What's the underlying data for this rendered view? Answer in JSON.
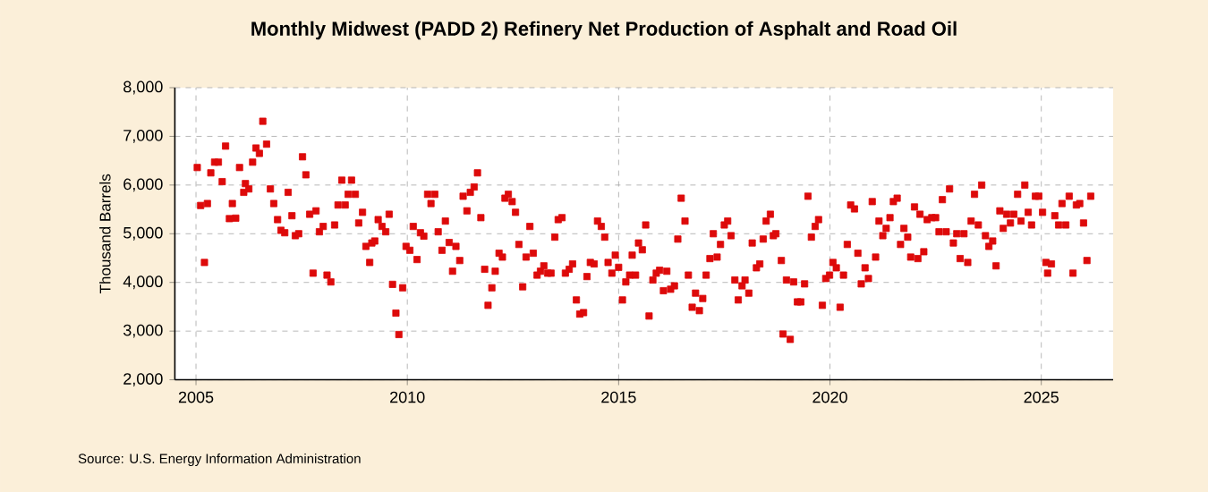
{
  "chart_data": {
    "type": "scatter",
    "title": "Monthly Midwest (PADD 2) Refinery Net Production of Asphalt and Road Oil",
    "ylabel": "Thousand Barrels",
    "annotations": [
      "Source: U.S. Energy Information Administration"
    ],
    "xlim": [
      2004.5,
      2026.7
    ],
    "xticks": [
      2005,
      2010,
      2015,
      2020,
      2025
    ],
    "ylim": [
      2000,
      8000
    ],
    "yticks": [
      {
        "value": 2000,
        "label": "2,000"
      },
      {
        "value": 3000,
        "label": "3,000"
      },
      {
        "value": 4000,
        "label": "4,000"
      },
      {
        "value": 5000,
        "label": "5,000"
      },
      {
        "value": 6000,
        "label": "6,000"
      },
      {
        "value": 7000,
        "label": "7,000"
      },
      {
        "value": 8000,
        "label": "8,000"
      }
    ],
    "grid": true,
    "marker": "square",
    "series": [
      {
        "color": "#dd0a0a",
        "x": [
          2005.03,
          2005.11,
          2005.2,
          2005.27,
          2005.35,
          2005.44,
          2005.53,
          2005.62,
          2005.7,
          2005.79,
          2005.86,
          2005.94,
          2006.03,
          2006.13,
          2006.17,
          2006.25,
          2006.34,
          2006.42,
          2006.5,
          2006.58,
          2006.67,
          2006.76,
          2006.84,
          2006.93,
          2007.01,
          2007.1,
          2007.18,
          2007.27,
          2007.35,
          2007.43,
          2007.52,
          2007.6,
          2007.69,
          2007.77,
          2007.84,
          2007.92,
          2008.01,
          2008.1,
          2008.19,
          2008.28,
          2008.36,
          2008.45,
          2008.53,
          2008.6,
          2008.68,
          2008.77,
          2008.85,
          2008.94,
          2009.02,
          2009.11,
          2009.16,
          2009.23,
          2009.31,
          2009.4,
          2009.49,
          2009.57,
          2009.65,
          2009.73,
          2009.8,
          2009.89,
          2009.97,
          2010.06,
          2010.14,
          2010.23,
          2010.31,
          2010.39,
          2010.48,
          2010.56,
          2010.65,
          2010.73,
          2010.82,
          2010.9,
          2010.99,
          2011.07,
          2011.15,
          2011.24,
          2011.32,
          2011.41,
          2011.49,
          2011.58,
          2011.66,
          2011.74,
          2011.83,
          2011.91,
          2012.0,
          2012.08,
          2012.17,
          2012.25,
          2012.31,
          2012.39,
          2012.48,
          2012.56,
          2012.64,
          2012.73,
          2012.81,
          2012.9,
          2012.98,
          2013.07,
          2013.15,
          2013.23,
          2013.32,
          2013.4,
          2013.49,
          2013.57,
          2013.66,
          2013.74,
          2013.83,
          2013.91,
          2014.0,
          2014.08,
          2014.17,
          2014.25,
          2014.33,
          2014.42,
          2014.5,
          2014.59,
          2014.67,
          2014.75,
          2014.84,
          2014.92,
          2015.0,
          2015.09,
          2015.17,
          2015.26,
          2015.32,
          2015.4,
          2015.47,
          2015.56,
          2015.64,
          2015.72,
          2015.81,
          2015.89,
          2015.97,
          2016.06,
          2016.14,
          2016.23,
          2016.32,
          2016.4,
          2016.48,
          2016.57,
          2016.65,
          2016.74,
          2016.82,
          2016.91,
          2016.99,
          2017.07,
          2017.16,
          2017.24,
          2017.33,
          2017.41,
          2017.5,
          2017.58,
          2017.66,
          2017.75,
          2017.83,
          2017.92,
          2017.99,
          2018.08,
          2018.16,
          2018.26,
          2018.34,
          2018.42,
          2018.49,
          2018.59,
          2018.66,
          2018.72,
          2018.85,
          2018.89,
          2018.97,
          2019.06,
          2019.14,
          2019.23,
          2019.31,
          2019.4,
          2019.48,
          2019.56,
          2019.65,
          2019.73,
          2019.82,
          2019.9,
          2019.99,
          2020.07,
          2020.15,
          2020.24,
          2020.32,
          2020.41,
          2020.49,
          2020.58,
          2020.66,
          2020.74,
          2020.83,
          2020.91,
          2021.0,
          2021.08,
          2021.16,
          2021.25,
          2021.33,
          2021.42,
          2021.5,
          2021.59,
          2021.67,
          2021.75,
          2021.84,
          2021.91,
          2022.0,
          2022.08,
          2022.13,
          2022.22,
          2022.3,
          2022.41,
          2022.5,
          2022.58,
          2022.66,
          2022.75,
          2022.83,
          2022.92,
          2023.0,
          2023.08,
          2023.17,
          2023.26,
          2023.34,
          2023.42,
          2023.51,
          2023.59,
          2023.68,
          2023.76,
          2023.85,
          2023.93,
          2024.02,
          2024.1,
          2024.18,
          2024.27,
          2024.35,
          2024.44,
          2024.52,
          2024.61,
          2024.69,
          2024.77,
          2024.86,
          2024.94,
          2025.03,
          2025.11,
          2025.15,
          2025.24,
          2025.32,
          2025.41,
          2025.49,
          2025.58,
          2025.66,
          2025.75,
          2025.83,
          2025.91,
          2026.0,
          2026.08,
          2026.17
        ],
        "values": [
          6360,
          5580,
          4410,
          5620,
          6250,
          6470,
          6470,
          6070,
          6800,
          5310,
          5620,
          5320,
          6360,
          5850,
          6030,
          5920,
          6470,
          6760,
          6650,
          7310,
          6840,
          5920,
          5620,
          5290,
          5070,
          5020,
          5850,
          5370,
          4960,
          5000,
          6580,
          6210,
          5400,
          4190,
          5470,
          5040,
          5150,
          4150,
          4010,
          5180,
          5590,
          6100,
          5590,
          5810,
          6100,
          5810,
          5220,
          5440,
          4740,
          4410,
          4810,
          4850,
          5290,
          5150,
          5040,
          5400,
          3960,
          3370,
          2930,
          3890,
          4740,
          4660,
          5150,
          4470,
          5020,
          4950,
          5810,
          5620,
          5810,
          5040,
          4660,
          5260,
          4820,
          4230,
          4740,
          4450,
          5770,
          5470,
          5850,
          5960,
          6250,
          5330,
          4270,
          3530,
          3890,
          4230,
          4600,
          4520,
          5730,
          5810,
          5660,
          5440,
          4780,
          3910,
          4520,
          5150,
          4600,
          4150,
          4230,
          4340,
          4190,
          4190,
          4930,
          5290,
          5330,
          4190,
          4270,
          4380,
          3640,
          3350,
          3380,
          4120,
          4410,
          4380,
          5260,
          5150,
          4930,
          4410,
          4190,
          4560,
          4310,
          3640,
          4010,
          4150,
          4560,
          4150,
          4810,
          4670,
          5180,
          3310,
          4050,
          4190,
          4250,
          3830,
          4230,
          3860,
          3930,
          4890,
          5730,
          5260,
          4150,
          3490,
          3780,
          3420,
          3670,
          4150,
          4490,
          5000,
          4520,
          4780,
          5180,
          5260,
          4960,
          4050,
          3640,
          3930,
          4050,
          3780,
          4810,
          4300,
          4380,
          4890,
          5260,
          5400,
          4960,
          5000,
          4450,
          2940,
          4050,
          2830,
          4010,
          3600,
          3600,
          3970,
          5770,
          4930,
          5150,
          5290,
          3530,
          4080,
          4150,
          4410,
          4300,
          3490,
          4150,
          4780,
          5590,
          5510,
          4600,
          3970,
          4300,
          4080,
          5660,
          4520,
          5260,
          4960,
          5110,
          5330,
          5660,
          5730,
          4780,
          5110,
          4930,
          4520,
          5550,
          4490,
          5400,
          4630,
          5290,
          5330,
          5330,
          5040,
          5700,
          5040,
          5920,
          4810,
          5000,
          4490,
          5000,
          4410,
          5260,
          5810,
          5180,
          6000,
          4960,
          4740,
          4850,
          4340,
          5470,
          5110,
          5400,
          5220,
          5400,
          5810,
          5260,
          6000,
          5440,
          5180,
          5770,
          5770,
          5440,
          4410,
          4190,
          4380,
          5370,
          5180,
          5620,
          5180,
          5770,
          4190,
          5590,
          5620,
          5220,
          4450,
          5770
        ]
      }
    ]
  }
}
